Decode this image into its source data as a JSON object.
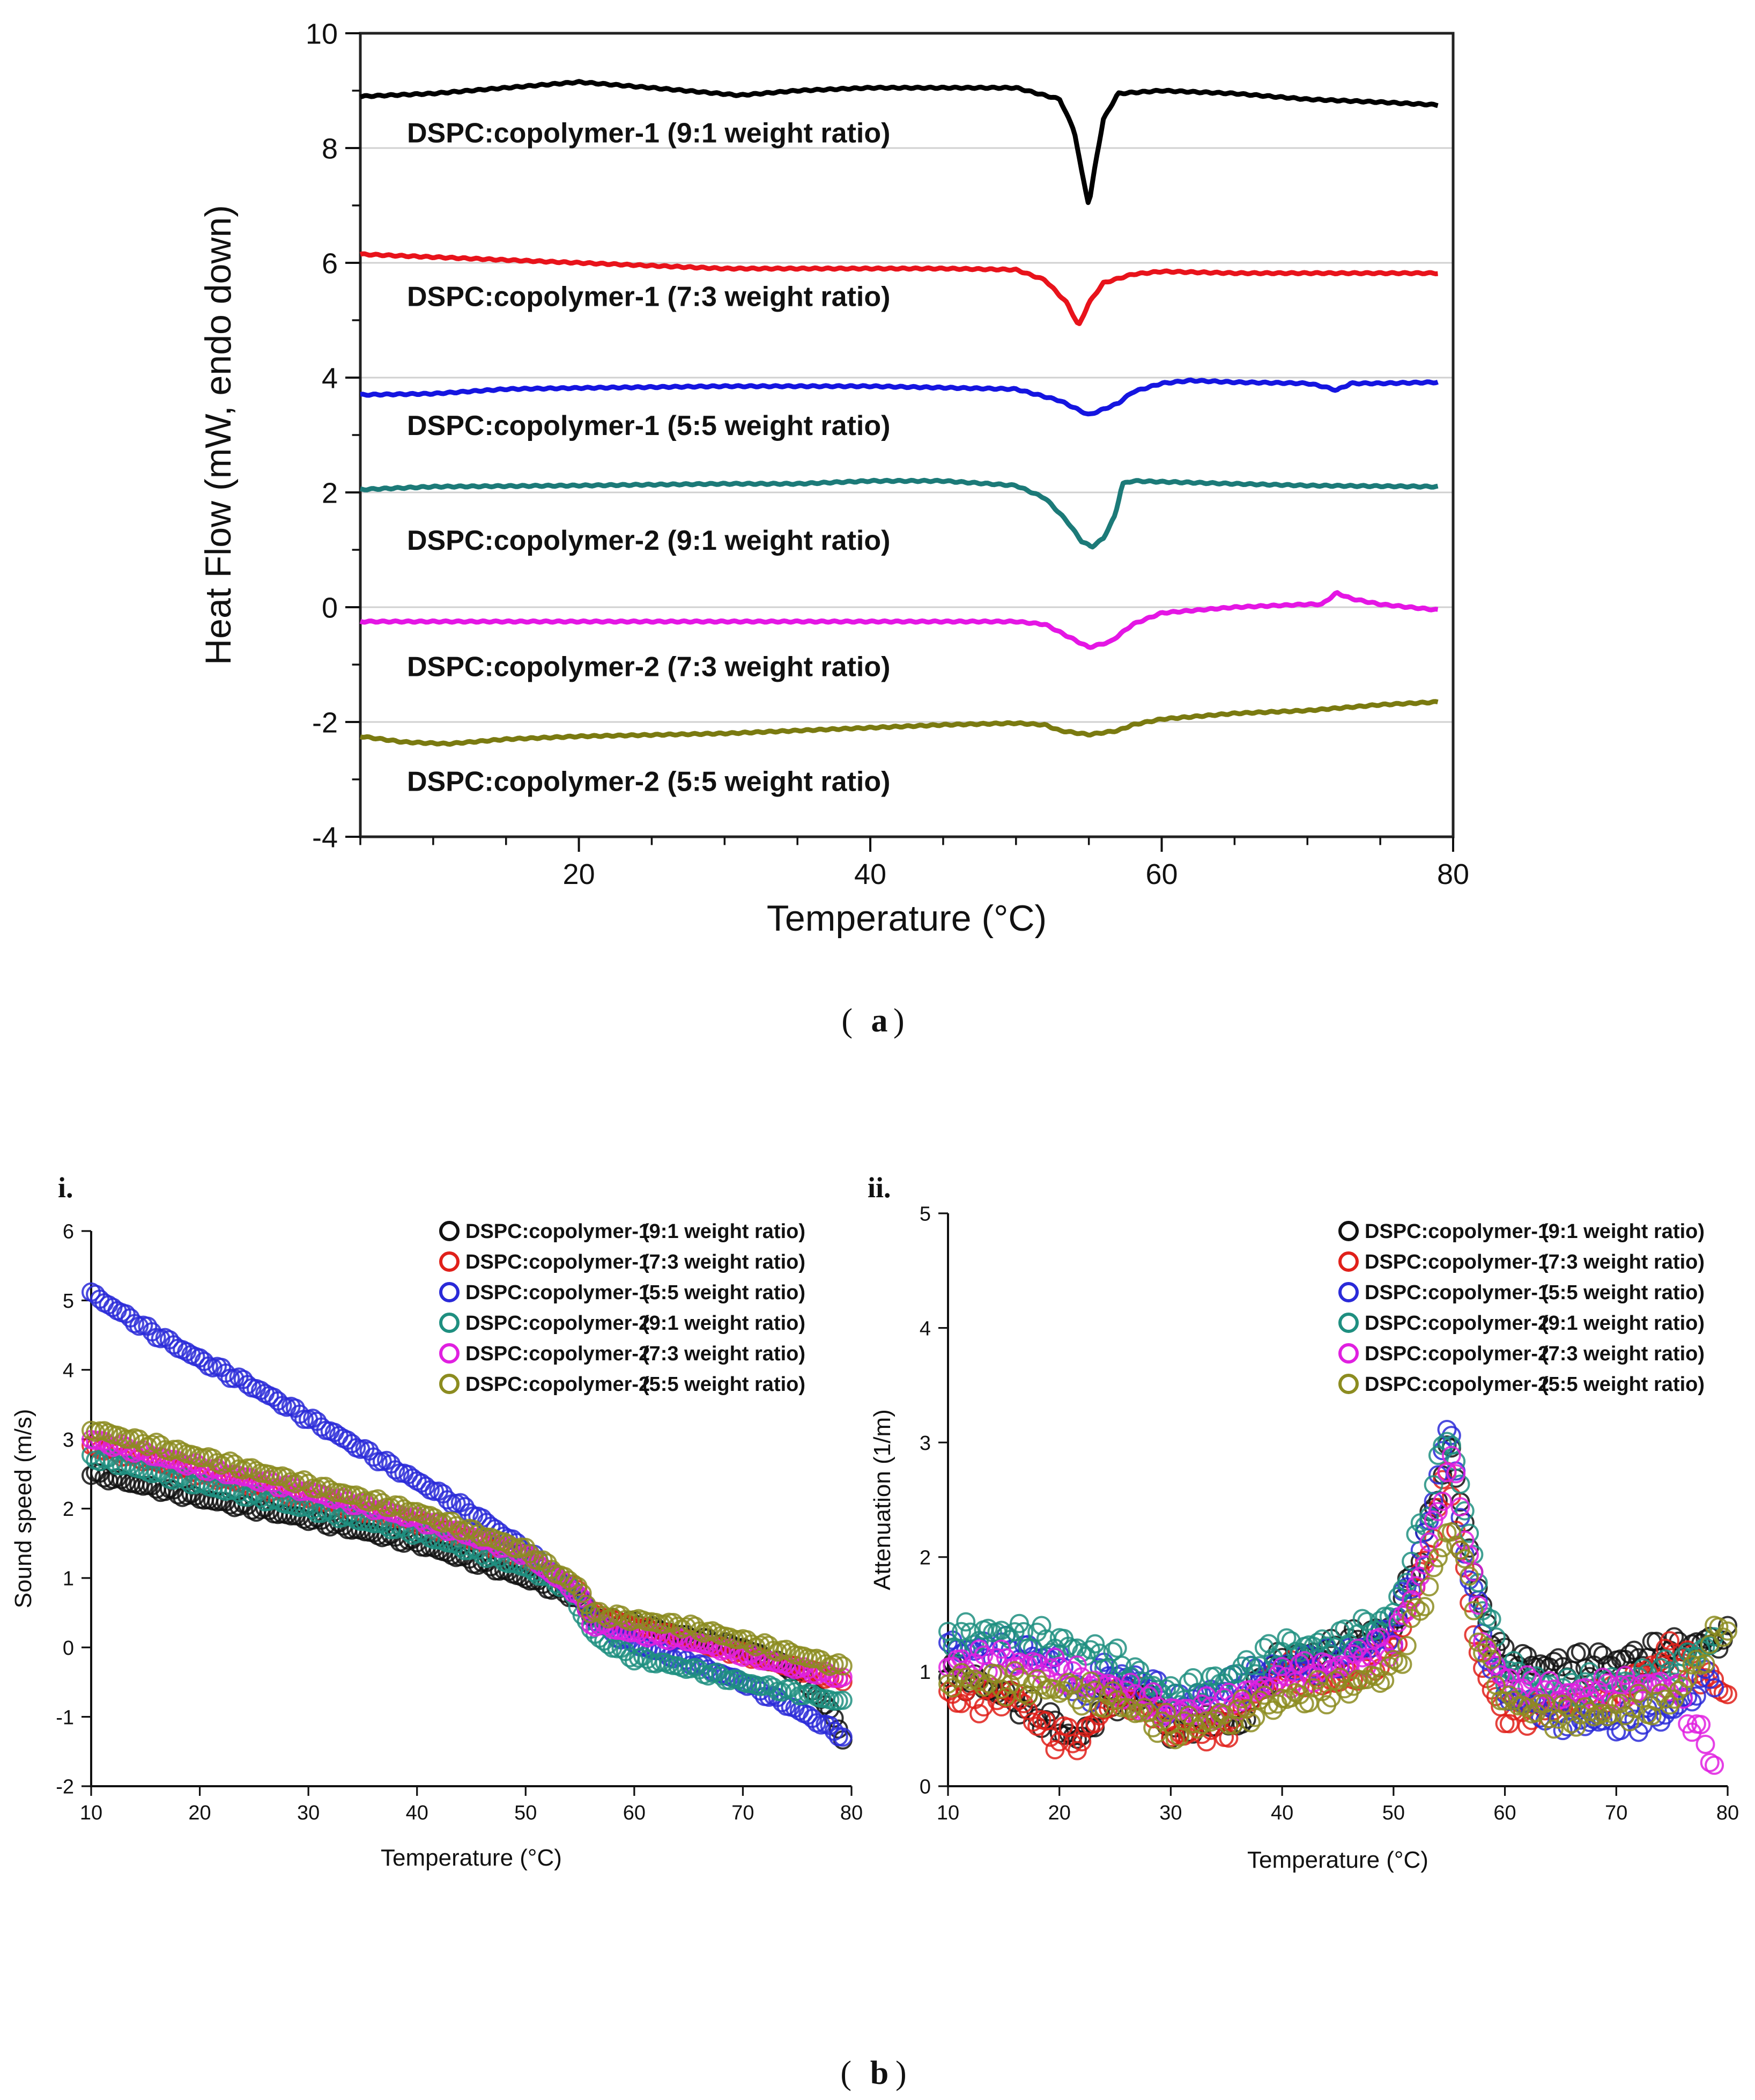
{
  "panels": {
    "a": "a",
    "b": "b",
    "bi": "i.",
    "bii": "ii."
  },
  "chart_data": [
    {
      "type": "line",
      "xlabel": "Temperature (°C)",
      "ylabel": "Heat Flow (mW, endo down)",
      "xlim": [
        5,
        80
      ],
      "ylim": [
        -4,
        10
      ],
      "xticks": [
        20,
        40,
        60,
        80
      ],
      "yticks": [
        -4,
        -2,
        0,
        2,
        4,
        6,
        8,
        10
      ],
      "grid": true,
      "series": [
        {
          "name": "DSPC:copolymer-1 (9:1 weight ratio)",
          "color": "#000000",
          "x": [
            5,
            10,
            15,
            20,
            25,
            31,
            35,
            40,
            45,
            50,
            53,
            54,
            54.5,
            55,
            55.5,
            56,
            57,
            60,
            65,
            70,
            75,
            79
          ],
          "y": [
            8.9,
            8.95,
            9.05,
            9.15,
            9.05,
            8.92,
            9.0,
            9.05,
            9.05,
            9.05,
            8.85,
            8.3,
            7.6,
            7.0,
            7.8,
            8.5,
            8.95,
            9.0,
            8.95,
            8.85,
            8.8,
            8.75
          ]
        },
        {
          "name": "DSPC:copolymer-1 (7:3 weight ratio)",
          "color": "#e8131b",
          "x": [
            5,
            10,
            20,
            30,
            40,
            45,
            50,
            52,
            53.5,
            54.3,
            55,
            56,
            58,
            60,
            65,
            70,
            75,
            79
          ],
          "y": [
            6.15,
            6.1,
            6.0,
            5.9,
            5.9,
            5.9,
            5.88,
            5.7,
            5.3,
            4.9,
            5.3,
            5.65,
            5.8,
            5.85,
            5.82,
            5.82,
            5.82,
            5.82
          ]
        },
        {
          "name": "DSPC:copolymer-1 (5:5 weight ratio)",
          "color": "#1515e0",
          "x": [
            5,
            10,
            15,
            20,
            30,
            40,
            50,
            53,
            55,
            56,
            57,
            58,
            60,
            62,
            65,
            70,
            71,
            72,
            73,
            75,
            79
          ],
          "y": [
            3.7,
            3.72,
            3.8,
            3.82,
            3.85,
            3.85,
            3.8,
            3.6,
            3.35,
            3.45,
            3.55,
            3.75,
            3.9,
            3.95,
            3.92,
            3.9,
            3.85,
            3.78,
            3.9,
            3.9,
            3.92
          ]
        },
        {
          "name": "DSPC:copolymer-2 (9:1 weight ratio)",
          "color": "#1c7a78",
          "x": [
            5,
            10,
            20,
            30,
            35,
            40,
            45,
            50,
            52,
            53.5,
            54.5,
            55.2,
            56,
            56.8,
            57.3,
            58,
            65,
            70,
            79
          ],
          "y": [
            2.05,
            2.1,
            2.12,
            2.15,
            2.15,
            2.2,
            2.2,
            2.12,
            1.9,
            1.5,
            1.15,
            1.05,
            1.2,
            1.6,
            2.15,
            2.2,
            2.15,
            2.12,
            2.1
          ]
        },
        {
          "name": "DSPC:copolymer-2 (7:3 weight ratio)",
          "color": "#e416e4",
          "x": [
            5,
            10,
            20,
            30,
            40,
            50,
            52,
            53.5,
            55,
            56.5,
            58,
            60,
            65,
            70,
            71,
            72,
            73,
            75,
            79
          ],
          "y": [
            -0.25,
            -0.25,
            -0.25,
            -0.25,
            -0.25,
            -0.25,
            -0.3,
            -0.5,
            -0.7,
            -0.6,
            -0.3,
            -0.1,
            0.0,
            0.05,
            0.05,
            0.25,
            0.15,
            0.05,
            -0.05
          ]
        },
        {
          "name": "DSPC:copolymer-2 (5:5 weight ratio)",
          "color": "#7a7a10",
          "x": [
            5,
            8,
            11,
            15,
            20,
            30,
            40,
            45,
            50,
            52,
            53,
            55,
            57,
            58,
            60,
            65,
            70,
            75,
            79
          ],
          "y": [
            -2.25,
            -2.35,
            -2.38,
            -2.3,
            -2.25,
            -2.2,
            -2.1,
            -2.05,
            -2.02,
            -2.05,
            -2.15,
            -2.22,
            -2.15,
            -2.05,
            -1.95,
            -1.85,
            -1.8,
            -1.7,
            -1.65
          ]
        }
      ]
    },
    {
      "type": "scatter",
      "xlabel": "Temperature (°C)",
      "ylabel": "Sound speed (m/s)",
      "xlim": [
        10,
        80
      ],
      "ylim": [
        -2,
        6
      ],
      "xticks": [
        10,
        20,
        30,
        40,
        50,
        60,
        70,
        80
      ],
      "yticks": [
        -2,
        -1,
        0,
        1,
        2,
        3,
        4,
        5,
        6
      ],
      "legend": "top-right",
      "series": [
        {
          "name": "DSPC:copolymer-1",
          "ratio": "(9:1 weight ratio)",
          "color": "#111111",
          "x": [
            10,
            20,
            30,
            40,
            45,
            50,
            55,
            56,
            60,
            65,
            70,
            75,
            78,
            79.5
          ],
          "y": [
            2.5,
            2.15,
            1.85,
            1.5,
            1.25,
            1.0,
            0.7,
            0.45,
            0.35,
            0.15,
            0.0,
            -0.35,
            -0.9,
            -1.4
          ]
        },
        {
          "name": "DSPC:copolymer-1",
          "ratio": "(7:3 weight ratio)",
          "color": "#e0201a",
          "x": [
            10,
            20,
            30,
            40,
            50,
            55,
            56,
            60,
            65,
            70,
            75,
            79.5
          ],
          "y": [
            2.9,
            2.5,
            2.15,
            1.8,
            1.3,
            0.8,
            0.5,
            0.3,
            0.1,
            -0.1,
            -0.3,
            -0.5
          ]
        },
        {
          "name": "DSPC:copolymer-1",
          "ratio": "(5:5 weight ratio)",
          "color": "#2a2ad8",
          "x": [
            10,
            15,
            20,
            25,
            30,
            35,
            40,
            45,
            50,
            53,
            55,
            56,
            58,
            60,
            65,
            70,
            75,
            79.5
          ],
          "y": [
            5.1,
            4.6,
            4.15,
            3.75,
            3.3,
            2.85,
            2.4,
            1.95,
            1.4,
            1.0,
            0.75,
            0.45,
            0.2,
            0.05,
            -0.2,
            -0.5,
            -0.9,
            -1.3
          ]
        },
        {
          "name": "DSPC:copolymer-2",
          "ratio": "(9:1 weight ratio)",
          "color": "#1f8f80",
          "x": [
            10,
            20,
            30,
            40,
            50,
            54,
            55,
            56,
            57,
            60,
            65,
            70,
            75,
            79.5
          ],
          "y": [
            2.75,
            2.35,
            2.0,
            1.65,
            1.15,
            0.85,
            0.55,
            0.25,
            0.1,
            -0.15,
            -0.3,
            -0.5,
            -0.65,
            -0.8
          ]
        },
        {
          "name": "DSPC:copolymer-2",
          "ratio": "(7:3 weight ratio)",
          "color": "#e020e0",
          "x": [
            10,
            20,
            30,
            40,
            50,
            55,
            56,
            60,
            65,
            70,
            75,
            79.5
          ],
          "y": [
            3.0,
            2.6,
            2.25,
            1.85,
            1.35,
            0.75,
            0.35,
            0.2,
            0.1,
            -0.1,
            -0.3,
            -0.45
          ]
        },
        {
          "name": "DSPC:copolymer-2",
          "ratio": "(5:5 weight ratio)",
          "color": "#8c8c20",
          "x": [
            10,
            20,
            30,
            40,
            50,
            55,
            56,
            60,
            65,
            70,
            75,
            79.5
          ],
          "y": [
            3.15,
            2.75,
            2.35,
            1.95,
            1.4,
            0.85,
            0.5,
            0.4,
            0.3,
            0.1,
            -0.1,
            -0.3
          ]
        }
      ]
    },
    {
      "type": "scatter",
      "xlabel": "Temperature (°C)",
      "ylabel": "Attenuation (1/m)",
      "xlim": [
        10,
        80
      ],
      "ylim": [
        0,
        5
      ],
      "xticks": [
        10,
        20,
        30,
        40,
        50,
        60,
        70,
        80
      ],
      "yticks": [
        0,
        1,
        2,
        3,
        4,
        5
      ],
      "legend": "top-right",
      "series": [
        {
          "name": "DSPC:copolymer-1",
          "ratio": "(9:1 weight ratio)",
          "color": "#111111",
          "x": [
            10,
            15,
            18,
            20,
            22,
            24,
            28,
            30,
            33,
            36,
            38,
            40,
            45,
            50,
            53,
            55,
            56,
            58,
            60,
            65,
            70,
            75,
            80
          ],
          "y": [
            1.0,
            0.8,
            0.65,
            0.5,
            0.4,
            0.75,
            0.8,
            0.5,
            0.6,
            0.5,
            0.9,
            1.1,
            1.2,
            1.4,
            2.2,
            3.0,
            2.5,
            1.5,
            1.1,
            1.05,
            1.1,
            1.2,
            1.3
          ]
        },
        {
          "name": "DSPC:copolymer-1",
          "ratio": "(7:3 weight ratio)",
          "color": "#e0201a",
          "x": [
            10,
            13,
            16,
            19,
            22,
            25,
            28,
            30,
            33,
            35,
            38,
            40,
            45,
            50,
            53,
            55,
            56,
            58,
            60,
            65,
            70,
            75,
            80
          ],
          "y": [
            0.8,
            0.75,
            0.8,
            0.45,
            0.4,
            0.8,
            0.75,
            0.45,
            0.5,
            0.5,
            0.85,
            1.0,
            0.9,
            1.2,
            2.0,
            2.8,
            2.0,
            1.0,
            0.6,
            0.7,
            0.8,
            1.2,
            0.8
          ]
        },
        {
          "name": "DSPC:copolymer-1",
          "ratio": "(5:5 weight ratio)",
          "color": "#2a2ad8",
          "x": [
            10,
            15,
            20,
            22,
            24,
            28,
            30,
            33,
            36,
            40,
            45,
            50,
            53,
            55,
            56,
            58,
            60,
            65,
            70,
            75,
            79
          ],
          "y": [
            1.2,
            1.2,
            1.1,
            0.75,
            1.0,
            0.9,
            0.7,
            0.8,
            0.9,
            1.05,
            1.1,
            1.35,
            2.2,
            3.25,
            2.3,
            1.3,
            0.8,
            0.6,
            0.55,
            0.65,
            1.0
          ]
        },
        {
          "name": "DSPC:copolymer-2",
          "ratio": "(9:1 weight ratio)",
          "color": "#1f8f80",
          "x": [
            10,
            15,
            20,
            25,
            28,
            30,
            33,
            36,
            40,
            45,
            50,
            53,
            55,
            56,
            58,
            60,
            65,
            70,
            75,
            79
          ],
          "y": [
            1.3,
            1.35,
            1.25,
            1.1,
            0.9,
            0.8,
            0.85,
            1.0,
            1.2,
            1.25,
            1.5,
            2.4,
            3.15,
            2.6,
            1.6,
            1.0,
            0.85,
            0.9,
            1.0,
            1.3
          ]
        },
        {
          "name": "DSPC:copolymer-2",
          "ratio": "(7:3 weight ratio)",
          "color": "#e020e0",
          "x": [
            10,
            15,
            20,
            25,
            30,
            35,
            40,
            45,
            50,
            53,
            55,
            56,
            58,
            60,
            65,
            70,
            75,
            78,
            79
          ],
          "y": [
            1.05,
            1.1,
            1.0,
            0.85,
            0.65,
            0.7,
            0.95,
            1.05,
            1.25,
            2.0,
            2.85,
            2.5,
            1.3,
            0.9,
            0.8,
            0.85,
            0.9,
            0.35,
            0.2
          ]
        },
        {
          "name": "DSPC:copolymer-2",
          "ratio": "(5:5 weight ratio)",
          "color": "#8c8c20",
          "x": [
            10,
            15,
            20,
            25,
            30,
            35,
            40,
            45,
            50,
            53,
            55,
            56,
            58,
            60,
            65,
            70,
            75,
            80
          ],
          "y": [
            0.95,
            0.9,
            0.85,
            0.75,
            0.5,
            0.6,
            0.75,
            0.85,
            1.0,
            1.7,
            2.25,
            2.1,
            1.2,
            0.75,
            0.6,
            0.65,
            0.75,
            1.45
          ]
        }
      ]
    }
  ]
}
